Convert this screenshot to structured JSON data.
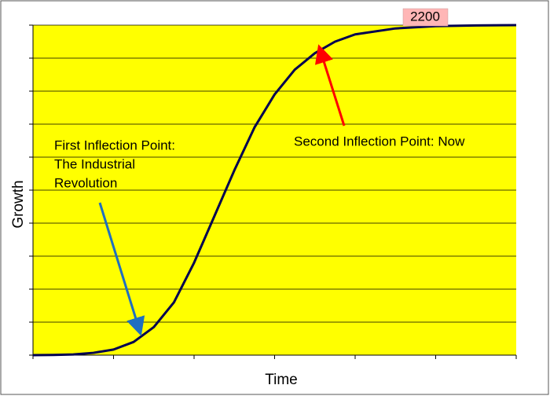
{
  "chart_data": {
    "type": "line",
    "x_label": "Time",
    "y_label": "Growth",
    "x": [
      0,
      0.25,
      0.5,
      0.75,
      1,
      1.25,
      1.5,
      1.75,
      2,
      2.25,
      2.5,
      2.75,
      3,
      3.25,
      3.5,
      3.75,
      4,
      4.5,
      5,
      5.5,
      6
    ],
    "series": [
      {
        "color": "#000050",
        "values": [
          0,
          0.005,
          0.02,
          0.07,
          0.17,
          0.4,
          0.85,
          1.6,
          2.8,
          4.2,
          5.6,
          6.9,
          7.9,
          8.65,
          9.15,
          9.5,
          9.72,
          9.9,
          9.97,
          9.99,
          10
        ]
      }
    ],
    "xlim": [
      0,
      6
    ],
    "ylim": [
      0,
      10
    ],
    "xticks": [
      0,
      1,
      2,
      3,
      4,
      5,
      6
    ],
    "yticks": [
      0,
      1,
      2,
      3,
      4,
      5,
      6,
      7,
      8,
      9,
      10
    ],
    "grid": true,
    "background": "#ffff00",
    "annotations": [
      {
        "lines": [
          "First Inflection Point:",
          "The Industrial",
          "Revolution"
        ]
      },
      {
        "lines": [
          "Second Inflection Point:  Now"
        ]
      },
      {
        "lines": [
          "2200"
        ]
      }
    ]
  }
}
